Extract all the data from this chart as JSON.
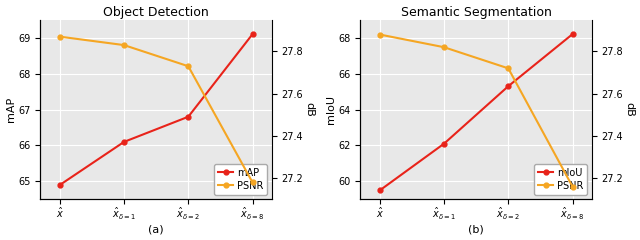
{
  "subplot_a": {
    "title": "Object Detection",
    "xlabel_label": "(a)",
    "ylabel_left": "mAP",
    "ylabel_right": "dB",
    "x_labels": [
      "$\\hat{x}$",
      "$\\hat{x}_{\\delta=1}$",
      "$\\hat{x}_{\\delta=2}$",
      "$\\hat{x}_{\\delta=8}$"
    ],
    "map_values": [
      64.9,
      66.1,
      66.8,
      69.1
    ],
    "psnr_values": [
      27.87,
      27.83,
      27.73,
      27.18
    ],
    "map_color": "#e8231a",
    "psnr_color": "#f5a623",
    "map_ylim": [
      64.5,
      69.5
    ],
    "psnr_ylim": [
      27.1,
      27.95
    ],
    "map_yticks": [
      65,
      66,
      67,
      68,
      69
    ],
    "psnr_yticks": [
      27.2,
      27.4,
      27.6,
      27.8
    ]
  },
  "subplot_b": {
    "title": "Semantic Segmentation",
    "xlabel_label": "(b)",
    "ylabel_left": "mIoU",
    "ylabel_right": "dB",
    "x_labels": [
      "$\\hat{x}$",
      "$\\hat{x}_{\\delta=1}$",
      "$\\hat{x}_{\\delta=2}$",
      "$\\hat{x}_{\\delta=8}$"
    ],
    "miou_values": [
      59.5,
      62.1,
      65.3,
      68.2
    ],
    "psnr_values": [
      27.88,
      27.82,
      27.72,
      27.16
    ],
    "miou_color": "#e8231a",
    "psnr_color": "#f5a623",
    "miou_ylim": [
      59.0,
      69.0
    ],
    "psnr_ylim": [
      27.1,
      27.95
    ],
    "miou_yticks": [
      60,
      62,
      64,
      66,
      68
    ],
    "psnr_yticks": [
      27.2,
      27.4,
      27.6,
      27.8
    ]
  },
  "axes_facecolor": "#e8e8e8",
  "figure_facecolor": "#ffffff",
  "grid_color": "#ffffff",
  "title_fontsize": 9,
  "label_fontsize": 8,
  "tick_fontsize": 7,
  "legend_fontsize": 7,
  "line_width": 1.5,
  "marker_size": 3.5
}
